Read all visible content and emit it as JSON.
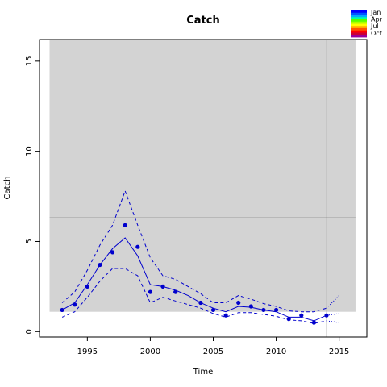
{
  "chart_data": {
    "type": "line",
    "title": "Catch",
    "xlabel": "Time",
    "ylabel": "Catch",
    "xlim": [
      1991.2,
      2017.2
    ],
    "ylim": [
      -0.3,
      16.2
    ],
    "xticks": [
      1995,
      2000,
      2005,
      2010,
      2015
    ],
    "yticks": [
      0,
      5,
      10,
      15
    ],
    "grid": false,
    "shaded_band": {
      "x": [
        1992,
        2016.3
      ],
      "y": [
        1.1,
        16.2
      ],
      "color": "#d3d3d3"
    },
    "vertical_line_x": 2014,
    "reference_line_y": 6.3,
    "legend": {
      "placement": "top-right",
      "entries": [
        "Jan",
        "Apr",
        "Jul",
        "Oct"
      ],
      "colors": [
        "#0000ff",
        "#0055ff",
        "#00aaff",
        "#00ffaa",
        "#55ff00",
        "#aaff00",
        "#ffff00",
        "#ffaa00",
        "#ff5500",
        "#ff0000",
        "#cc0033",
        "#990099"
      ]
    },
    "series": [
      {
        "role": "observed",
        "style": "points",
        "color": "#0000cd",
        "points": [
          [
            1993,
            1.2
          ],
          [
            1994,
            1.5
          ],
          [
            1995,
            2.5
          ],
          [
            1996,
            3.7
          ],
          [
            1997,
            4.4
          ],
          [
            1998,
            5.9
          ],
          [
            1999,
            4.7
          ],
          [
            2000,
            2.2
          ],
          [
            2001,
            2.5
          ],
          [
            2002,
            2.2
          ],
          [
            2004,
            1.6
          ],
          [
            2005,
            1.2
          ],
          [
            2006,
            0.9
          ],
          [
            2007,
            1.6
          ],
          [
            2008,
            1.4
          ],
          [
            2009,
            1.2
          ],
          [
            2010,
            1.2
          ],
          [
            2011,
            0.7
          ],
          [
            2012,
            0.9
          ],
          [
            2013,
            0.5
          ],
          [
            2014,
            0.9
          ]
        ]
      },
      {
        "role": "fit",
        "style": "solid",
        "color": "#0000cd",
        "points": [
          [
            1993,
            1.2
          ],
          [
            1994,
            1.6
          ],
          [
            1995,
            2.6
          ],
          [
            1996,
            3.7
          ],
          [
            1997,
            4.6
          ],
          [
            1998,
            5.2
          ],
          [
            1999,
            4.2
          ],
          [
            2000,
            2.6
          ],
          [
            2001,
            2.5
          ],
          [
            2002,
            2.3
          ],
          [
            2003,
            2.0
          ],
          [
            2004,
            1.6
          ],
          [
            2005,
            1.3
          ],
          [
            2006,
            1.1
          ],
          [
            2007,
            1.4
          ],
          [
            2008,
            1.35
          ],
          [
            2009,
            1.2
          ],
          [
            2010,
            1.1
          ],
          [
            2011,
            0.8
          ],
          [
            2012,
            0.8
          ],
          [
            2013,
            0.6
          ],
          [
            2014,
            0.9
          ]
        ]
      },
      {
        "role": "upper",
        "style": "dashed",
        "color": "#0000cd",
        "points": [
          [
            1993,
            1.6
          ],
          [
            1994,
            2.2
          ],
          [
            1995,
            3.4
          ],
          [
            1996,
            4.8
          ],
          [
            1997,
            5.9
          ],
          [
            1998,
            7.8
          ],
          [
            1999,
            5.9
          ],
          [
            2000,
            4.1
          ],
          [
            2001,
            3.1
          ],
          [
            2002,
            2.9
          ],
          [
            2003,
            2.5
          ],
          [
            2004,
            2.1
          ],
          [
            2005,
            1.6
          ],
          [
            2006,
            1.6
          ],
          [
            2007,
            2.0
          ],
          [
            2008,
            1.8
          ],
          [
            2009,
            1.55
          ],
          [
            2010,
            1.4
          ],
          [
            2011,
            1.15
          ],
          [
            2012,
            1.1
          ],
          [
            2013,
            1.1
          ],
          [
            2014,
            1.3
          ]
        ]
      },
      {
        "role": "lower",
        "style": "dashed",
        "color": "#0000cd",
        "points": [
          [
            1993,
            0.8
          ],
          [
            1994,
            1.1
          ],
          [
            1995,
            1.9
          ],
          [
            1996,
            2.8
          ],
          [
            1997,
            3.5
          ],
          [
            1998,
            3.5
          ],
          [
            1999,
            3.1
          ],
          [
            2000,
            1.6
          ],
          [
            2001,
            1.9
          ],
          [
            2002,
            1.7
          ],
          [
            2003,
            1.5
          ],
          [
            2004,
            1.3
          ],
          [
            2005,
            1.0
          ],
          [
            2006,
            0.8
          ],
          [
            2007,
            1.05
          ],
          [
            2008,
            1.05
          ],
          [
            2009,
            0.95
          ],
          [
            2010,
            0.85
          ],
          [
            2011,
            0.65
          ],
          [
            2012,
            0.6
          ],
          [
            2013,
            0.45
          ],
          [
            2014,
            0.6
          ]
        ]
      },
      {
        "role": "forecast-upper",
        "style": "dotted",
        "color": "#0000cd",
        "points": [
          [
            2014,
            1.3
          ],
          [
            2015,
            2.0
          ]
        ]
      },
      {
        "role": "forecast-mid",
        "style": "dotted",
        "color": "#0000cd",
        "points": [
          [
            2014,
            0.9
          ],
          [
            2015,
            1.0
          ]
        ]
      },
      {
        "role": "forecast-lower",
        "style": "dotted",
        "color": "#0000cd",
        "points": [
          [
            2014,
            0.6
          ],
          [
            2015,
            0.5
          ]
        ]
      }
    ]
  }
}
